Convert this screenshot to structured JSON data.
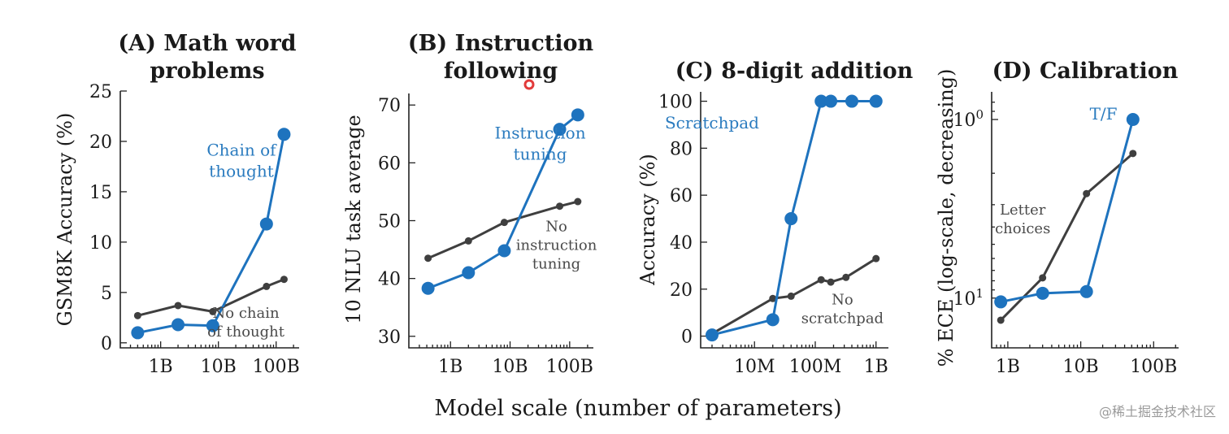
{
  "xlabel": "Model scale (number of parameters)",
  "watermark": "@稀土掘金技术社区",
  "colors": {
    "blue": "#1e73be",
    "gray": "#3f3f3f",
    "annotation_blue": "#2a7bbf"
  },
  "chart_data": [
    {
      "id": "A",
      "type": "line",
      "title": [
        "(A) Math word",
        "problems"
      ],
      "ylabel": "GSM8K Accuracy (%)",
      "xscale": "log",
      "xlim": [
        200000000.0,
        250000000000.0
      ],
      "ylim": [
        -0.5,
        25
      ],
      "xticks": [
        {
          "v": 1000000000.0,
          "label": "1B"
        },
        {
          "v": 10000000000.0,
          "label": "10B"
        },
        {
          "v": 100000000000.0,
          "label": "100B"
        }
      ],
      "yticks": [
        {
          "v": 0,
          "label": "0"
        },
        {
          "v": 5,
          "label": "5"
        },
        {
          "v": 10,
          "label": "10"
        },
        {
          "v": 15,
          "label": "15"
        },
        {
          "v": 20,
          "label": "20"
        },
        {
          "v": 25,
          "label": "25"
        }
      ],
      "series": [
        {
          "name": "Chain of thought",
          "style": "blue",
          "x": [
            400000000.0,
            2000000000.0,
            8000000000.0,
            68000000000.0,
            137000000000.0
          ],
          "y": [
            1,
            1.8,
            1.7,
            11.8,
            20.7
          ]
        },
        {
          "name": "No chain of thought",
          "style": "gray",
          "x": [
            400000000.0,
            2000000000.0,
            8000000000.0,
            68000000000.0,
            137000000000.0
          ],
          "y": [
            2.7,
            3.7,
            3.1,
            5.6,
            6.3
          ]
        }
      ],
      "annotations": [
        {
          "lines": [
            "Chain of",
            "thought"
          ],
          "style": "blue",
          "x": 25000000000.0,
          "y": 18.6
        },
        {
          "lines": [
            "No chain",
            "of thought"
          ],
          "style": "gray",
          "x": 30000000000.0,
          "y": 2.5
        }
      ]
    },
    {
      "id": "B",
      "type": "line",
      "title": [
        "(B) Instruction",
        "following"
      ],
      "ylabel": "10 NLU task average",
      "xscale": "log",
      "xlim": [
        200000000.0,
        250000000000.0
      ],
      "ylim": [
        28,
        72
      ],
      "xticks": [
        {
          "v": 1000000000.0,
          "label": "1B"
        },
        {
          "v": 10000000000.0,
          "label": "10B"
        },
        {
          "v": 100000000000.0,
          "label": "100B"
        }
      ],
      "yticks": [
        {
          "v": 30,
          "label": "30"
        },
        {
          "v": 40,
          "label": "40"
        },
        {
          "v": 50,
          "label": "50"
        },
        {
          "v": 60,
          "label": "60"
        },
        {
          "v": 70,
          "label": "70"
        }
      ],
      "series": [
        {
          "name": "Instruction tuning",
          "style": "blue",
          "x": [
            420000000.0,
            2000000000.0,
            8000000000.0,
            68000000000.0,
            137000000000.0
          ],
          "y": [
            38.3,
            41,
            44.8,
            65.8,
            68.3
          ]
        },
        {
          "name": "No instruction tuning",
          "style": "gray",
          "x": [
            420000000.0,
            2000000000.0,
            8000000000.0,
            68000000000.0,
            137000000000.0
          ],
          "y": [
            43.5,
            46.5,
            49.7,
            52.5,
            53.3
          ]
        }
      ],
      "annotations": [
        {
          "lines": [
            "Instruction",
            "tuning"
          ],
          "style": "blue",
          "x": 32000000000.0,
          "y": 64.2
        },
        {
          "lines": [
            "No",
            "instruction",
            "tuning"
          ],
          "style": "gray",
          "x": 60000000000.0,
          "y": 48.2
        }
      ]
    },
    {
      "id": "C",
      "type": "line",
      "title": [
        "(C) 8-digit addition"
      ],
      "ylabel": "Accuracy (%)",
      "xscale": "log",
      "xlim": [
        1300000.0,
        1600000000.0
      ],
      "ylim": [
        -5,
        104
      ],
      "xticks": [
        {
          "v": 10000000.0,
          "label": "10M"
        },
        {
          "v": 100000000.0,
          "label": "100M"
        },
        {
          "v": 1000000000.0,
          "label": "1B"
        }
      ],
      "yticks": [
        {
          "v": 0,
          "label": "0"
        },
        {
          "v": 20,
          "label": "20"
        },
        {
          "v": 40,
          "label": "40"
        },
        {
          "v": 60,
          "label": "60"
        },
        {
          "v": 80,
          "label": "80"
        },
        {
          "v": 100,
          "label": "100"
        }
      ],
      "series": [
        {
          "name": "Scratchpad",
          "style": "blue",
          "x": [
            2000000.0,
            20000000.0,
            40000000.0,
            125000000.0,
            180000000.0,
            400000000.0,
            1000000000.0
          ],
          "y": [
            0.5,
            7,
            50,
            100,
            100,
            100,
            100
          ]
        },
        {
          "name": "No scratchpad",
          "style": "gray",
          "x": [
            2000000.0,
            20000000.0,
            40000000.0,
            125000000.0,
            180000000.0,
            320000000.0,
            1000000000.0
          ],
          "y": [
            1,
            16,
            17,
            24,
            23,
            25,
            33
          ]
        }
      ],
      "annotations": [
        {
          "lines": [
            "Scratchpad"
          ],
          "style": "blue",
          "x": 2000000.0,
          "y": 88.5
        },
        {
          "lines": [
            "No",
            "scratchpad"
          ],
          "style": "gray",
          "x": 280000000.0,
          "y": 13.5
        }
      ]
    },
    {
      "id": "D",
      "type": "line",
      "title": [
        "(D) Calibration"
      ],
      "ylabel": "% ECE (log-scale, decreasing)",
      "xscale": "log",
      "yscale": "log",
      "y_reversed": true,
      "xlim": [
        600000000.0,
        220000000000.0
      ],
      "ylim": [
        1.9,
        0.07
      ],
      "xticks": [
        {
          "v": 1000000000.0,
          "label": "1B"
        },
        {
          "v": 10000000000.0,
          "label": "10B"
        },
        {
          "v": 100000000000.0,
          "label": "100B"
        }
      ],
      "yticks": [
        {
          "v": 0.1,
          "label": "10^0"
        },
        {
          "v": 1,
          "label": "10^1"
        }
      ],
      "series": [
        {
          "name": "T/F",
          "style": "blue",
          "x": [
            800000000.0,
            3000000000.0,
            12000000000.0,
            52000000000.0
          ],
          "y": [
            1.05,
            0.94,
            0.92,
            0.1
          ]
        },
        {
          "name": "Letter choices",
          "style": "gray",
          "x": [
            800000000.0,
            3000000000.0,
            12000000000.0,
            52000000000.0
          ],
          "y": [
            1.33,
            0.77,
            0.26,
            0.155
          ]
        }
      ],
      "annotations": [
        {
          "lines": [
            "T/F"
          ],
          "style": "blue",
          "x": 20500000000.0,
          "y": 0.1
        },
        {
          "lines": [
            "Letter",
            "choices"
          ],
          "style": "gray",
          "x": 1600000000.0,
          "y": 0.34
        }
      ]
    }
  ]
}
